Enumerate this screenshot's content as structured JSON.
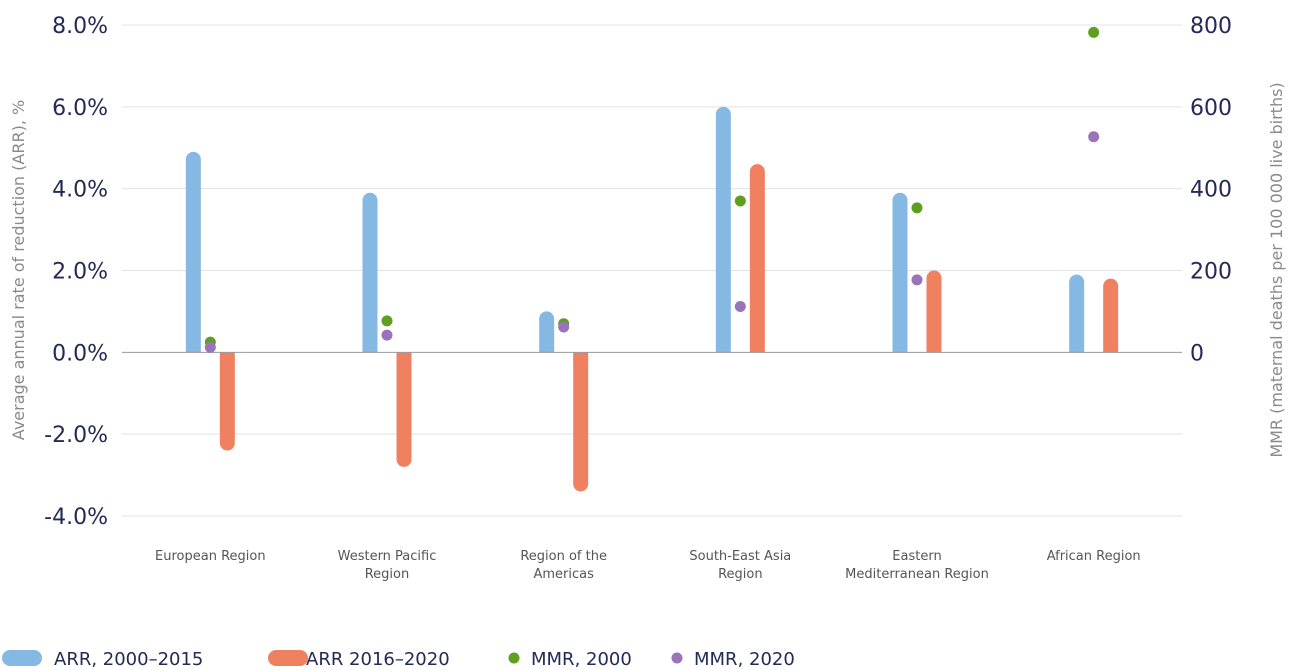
{
  "chart_data": {
    "type": "bar",
    "categories": [
      [
        "European Region"
      ],
      [
        "Western Pacific",
        "Region"
      ],
      [
        "Region of the",
        "Americas"
      ],
      [
        "South-East Asia",
        "Region"
      ],
      [
        "Eastern",
        "Mediterranean Region"
      ],
      [
        "African Region"
      ]
    ],
    "series": [
      {
        "name": "ARR, 2000–2015",
        "kind": "bar",
        "axis": "left",
        "color": "#85b8e3",
        "values": [
          4.9,
          3.9,
          1.0,
          6.0,
          3.9,
          1.9
        ]
      },
      {
        "name": "ARR 2016–2020",
        "kind": "bar",
        "axis": "left",
        "color": "#f08160",
        "values": [
          -2.4,
          -2.8,
          -3.4,
          4.6,
          2.0,
          1.8
        ]
      },
      {
        "name": "MMR, 2000",
        "kind": "dot",
        "axis": "right",
        "color": "#5f9f1f",
        "values": [
          25,
          77,
          70,
          370,
          353,
          782
        ]
      },
      {
        "name": "MMR, 2020",
        "kind": "dot",
        "axis": "right",
        "color": "#9a74b8",
        "values": [
          12,
          42,
          62,
          112,
          177,
          527
        ]
      }
    ],
    "ylabel": "Average annual rate of reduction (ARR), %",
    "ylabel_right": "MMR (maternal deaths per 100 000 live births)",
    "ylim": [
      -4,
      8
    ],
    "yticks": [
      "8.0%",
      "6.0%",
      "4.0%",
      "2.0%",
      "0.0%",
      "-2.0%",
      "-4.0%"
    ],
    "ytick_values": [
      8,
      6,
      4,
      2,
      0,
      -2,
      -4
    ],
    "ylim_right": [
      -400,
      800
    ],
    "yticks_right": [
      "800",
      "600",
      "400",
      "200",
      "0"
    ],
    "ytick_right_values": [
      800,
      600,
      400,
      200,
      0
    ],
    "grid": true,
    "legend_position": "bottom-left"
  }
}
